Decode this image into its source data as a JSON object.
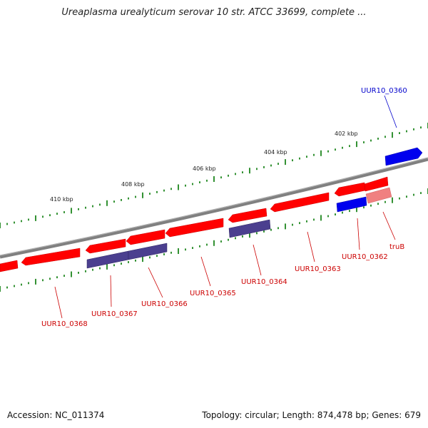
{
  "title": "Ureaplasma urealyticum serovar 10 str. ATCC 33699, complete ...",
  "footer": {
    "accession": "Accession: NC_011374",
    "summary": "Topology: circular; Length: 874,478 bp; Genes: 679"
  },
  "colors": {
    "backbone": "#808080",
    "tick": "#007700",
    "forward_gene": "#ff0000",
    "reverse_gene_other": "#4b3f8f",
    "reverse_gene_blue": "#0000ee",
    "label_red": "#cc0000",
    "label_blue": "#0000cc"
  },
  "scale_labels": [
    "410 kbp",
    "408 kbp",
    "406 kbp",
    "404 kbp",
    "402 kbp"
  ],
  "genes": [
    {
      "label": "UUR10_0360"
    },
    {
      "label": "truB"
    },
    {
      "label": "UUR10_0362"
    },
    {
      "label": "UUR10_0363"
    },
    {
      "label": "UUR10_0364"
    },
    {
      "label": "UUR10_0365"
    },
    {
      "label": "UUR10_0366"
    },
    {
      "label": "UUR10_0367"
    },
    {
      "label": "UUR10_0368"
    }
  ]
}
